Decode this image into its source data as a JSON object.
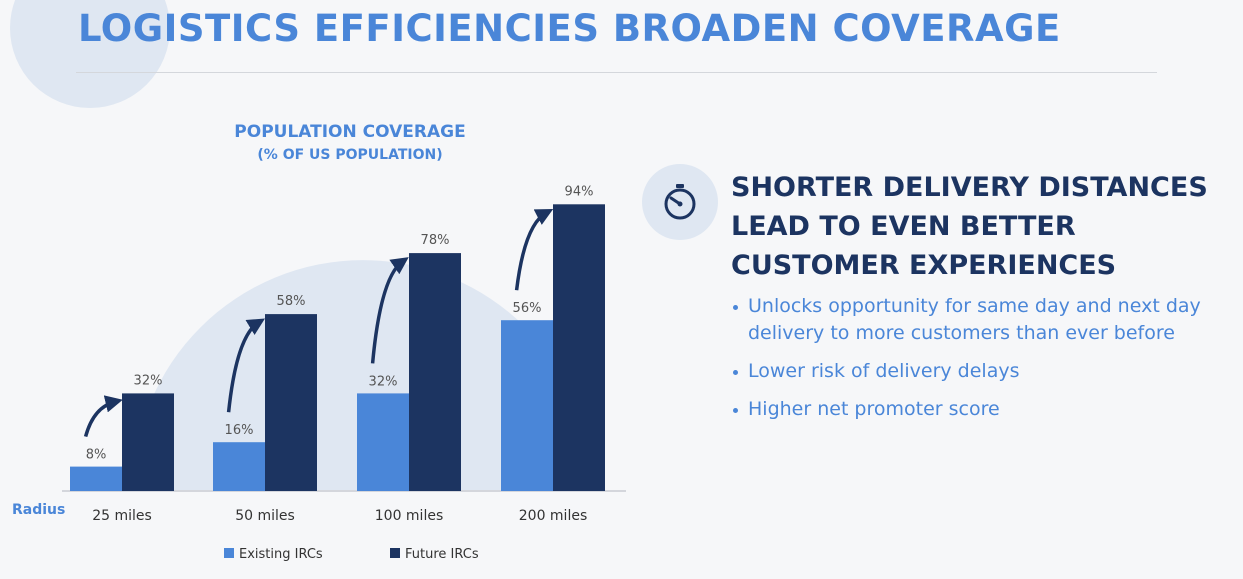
{
  "page": {
    "title": "LOGISTICS EFFICIENCIES BROADEN COVERAGE"
  },
  "chart_data": {
    "type": "bar",
    "title_line1": "POPULATION COVERAGE",
    "title_line2": "(% OF US POPULATION)",
    "xlabel": "Radius",
    "ylabel": "",
    "categories": [
      "25 miles",
      "50 miles",
      "100 miles",
      "200 miles"
    ],
    "series": [
      {
        "name": "Existing IRCs",
        "values": [
          8,
          16,
          32,
          56
        ],
        "color": "#4a86d8"
      },
      {
        "name": "Future IRCs",
        "values": [
          32,
          58,
          78,
          94
        ],
        "color": "#1c3461"
      }
    ],
    "value_suffix": "%",
    "ylim": [
      0,
      100
    ],
    "grid": false,
    "legend": "bottom",
    "annotations": "curved arrow from each Existing bar to its Future bar"
  },
  "panel": {
    "icon": "stopwatch-icon",
    "headline": [
      "SHORTER DELIVERY DISTANCES",
      "LEAD TO EVEN BETTER",
      "CUSTOMER EXPERIENCES"
    ],
    "bullets": [
      "Unlocks opportunity for same day and next day delivery to more customers than ever before",
      "Lower risk of delivery delays",
      "Higher net promoter score"
    ]
  },
  "colors": {
    "accent_blue": "#4a86d8",
    "navy": "#1c3461",
    "background": "#f6f7f9",
    "circle": "#dfe7f2"
  }
}
